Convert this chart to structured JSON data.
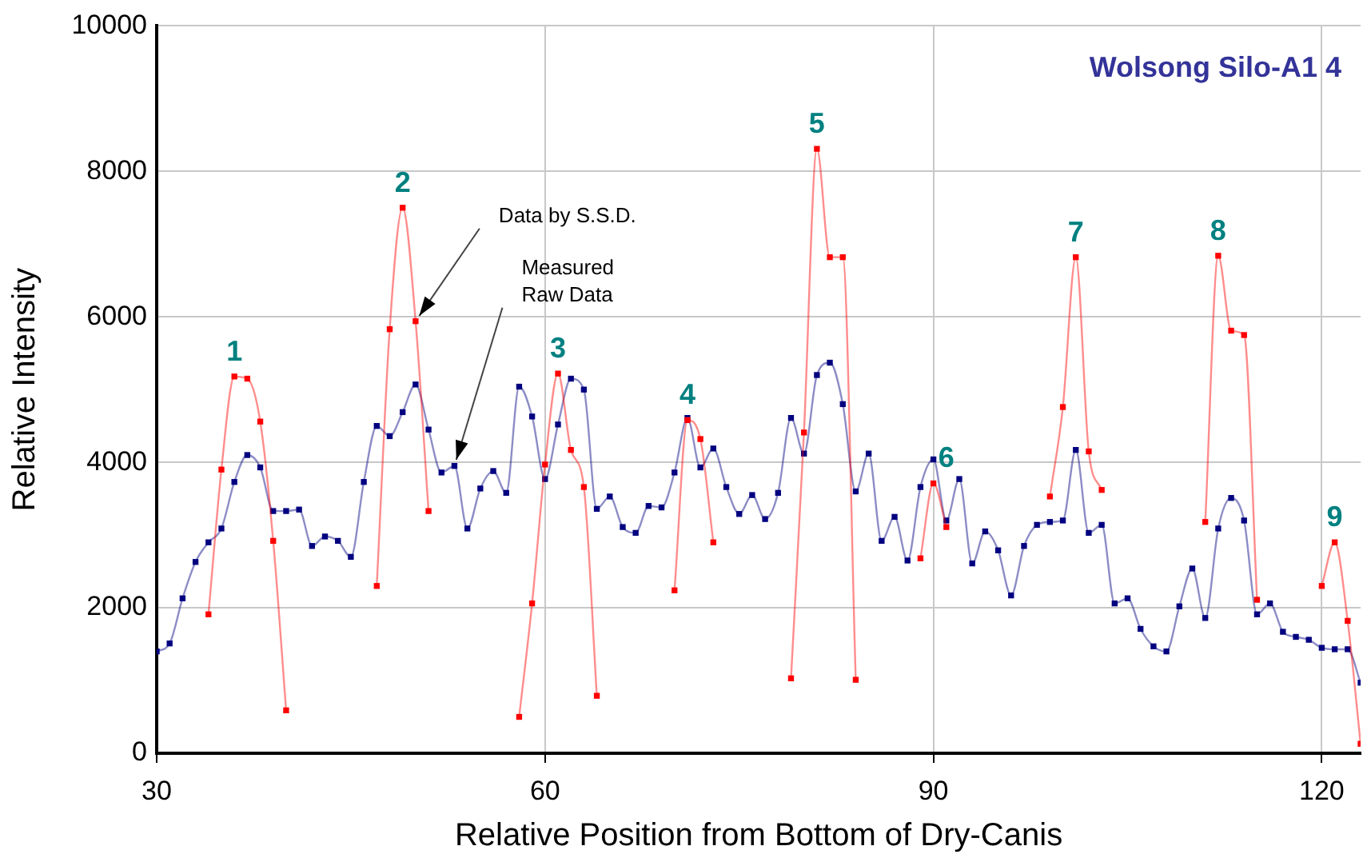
{
  "chart_data": {
    "type": "line",
    "title": "Wolsong Silo-A1 4",
    "xlabel": "Relative Position from Bottom of Dry-Canis",
    "ylabel": "Relative Intensity",
    "x": [
      30,
      31,
      32,
      33,
      34,
      35,
      36,
      37,
      38,
      39,
      40,
      41,
      42,
      43,
      44,
      45,
      46,
      47,
      48,
      49,
      50,
      51,
      52,
      53,
      54,
      55,
      56,
      57,
      58,
      59,
      60,
      61,
      62,
      63,
      64,
      65,
      66,
      67,
      68,
      69,
      70,
      71,
      72,
      73,
      74,
      75,
      76,
      77,
      78,
      79,
      80,
      81,
      82,
      83,
      84,
      85,
      86,
      87,
      88,
      89,
      90,
      91,
      92,
      93,
      94,
      95,
      96,
      97,
      98,
      99,
      100,
      101,
      102,
      103,
      104,
      105,
      106,
      107,
      108,
      109,
      110,
      111,
      112,
      113,
      114,
      115,
      116,
      117,
      118,
      119,
      120,
      121,
      122,
      123
    ],
    "series": [
      {
        "color": "#000080",
        "values": [
          1400,
          1510,
          2130,
          2630,
          2900,
          3090,
          3730,
          4100,
          3930,
          3330,
          3330,
          3350,
          2850,
          2980,
          2920,
          2700,
          3730,
          4500,
          4360,
          4690,
          5070,
          4450,
          3860,
          3950,
          3090,
          3640,
          3880,
          3580,
          5040,
          4630,
          3770,
          4520,
          5150,
          5000,
          3360,
          3530,
          3110,
          3030,
          3400,
          3380,
          3860,
          4610,
          3930,
          4190,
          3660,
          3290,
          3550,
          3220,
          3580,
          4610,
          4120,
          5200,
          5370,
          4800,
          3600,
          4120,
          2920,
          3250,
          2650,
          3660,
          4040,
          3200,
          3770,
          2610,
          3050,
          2790,
          2170,
          2850,
          3140,
          3180,
          3200,
          4170,
          3030,
          3140,
          2060,
          2130,
          1710,
          1470,
          1400,
          2020,
          2540,
          1860,
          3090,
          3510,
          3200,
          1910,
          2060,
          1670,
          1600,
          1560,
          1450,
          1430,
          1430,
          970
        ]
      },
      {
        "color": "#ff0000",
        "values": [
          null,
          null,
          null,
          null,
          1910,
          3900,
          5180,
          5150,
          4560,
          2920,
          590,
          null,
          null,
          null,
          null,
          null,
          null,
          2300,
          5830,
          7500,
          5940,
          3330,
          null,
          null,
          null,
          null,
          null,
          null,
          500,
          2060,
          3970,
          5220,
          4170,
          3660,
          790,
          null,
          null,
          null,
          null,
          null,
          2240,
          4580,
          4320,
          2900,
          null,
          null,
          null,
          null,
          null,
          1030,
          4410,
          8310,
          6820,
          6820,
          1010,
          null,
          null,
          null,
          null,
          2680,
          3710,
          3110,
          null,
          null,
          null,
          null,
          null,
          null,
          null,
          3530,
          4760,
          6820,
          4150,
          3620,
          null,
          null,
          null,
          null,
          null,
          null,
          null,
          3180,
          6840,
          5810,
          5750,
          2110,
          null,
          null,
          null,
          null,
          2300,
          2900,
          1820,
          130
        ]
      }
    ],
    "xlim": [
      30,
      123
    ],
    "xticks": [
      30,
      60,
      90,
      120
    ],
    "ylim": [
      0,
      10000
    ],
    "yticks": [
      0,
      2000,
      4000,
      6000,
      8000,
      10000
    ],
    "grid": true,
    "legend": false,
    "marker": "square",
    "line_style": "solid",
    "annotations": [
      {
        "text": "1",
        "x": 36,
        "y": 5180
      },
      {
        "text": "2",
        "x": 49,
        "y": 7500
      },
      {
        "text": "3",
        "x": 61,
        "y": 5220
      },
      {
        "text": "4",
        "x": 71,
        "y": 4580
      },
      {
        "text": "5",
        "x": 81,
        "y": 8310
      },
      {
        "text": "6",
        "x": 91,
        "y": 3710
      },
      {
        "text": "7",
        "x": 101,
        "y": 6820
      },
      {
        "text": "8",
        "x": 112,
        "y": 6840
      },
      {
        "text": "9",
        "x": 121,
        "y": 2900
      },
      {
        "text": "Data by S.S.D.",
        "x": 50,
        "y": 5940
      },
      {
        "text": "Measured\nRaw Data",
        "x": 53,
        "y": 3950
      }
    ]
  }
}
